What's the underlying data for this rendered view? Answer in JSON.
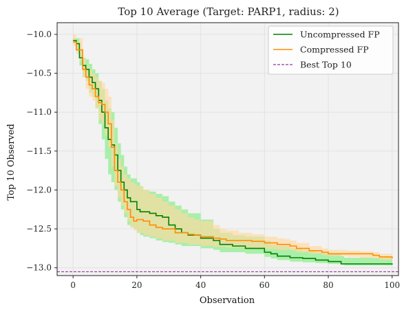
{
  "chart_data": {
    "type": "line",
    "title": "Top 10 Average (Target: PARP1, radius: 2)",
    "xlabel": "Observation",
    "ylabel": "Top 10 Observed",
    "xlim": [
      -5,
      102
    ],
    "ylim": [
      -13.1,
      -9.85
    ],
    "xticks": [
      0,
      20,
      40,
      60,
      80,
      100
    ],
    "yticks": [
      -13.0,
      -12.5,
      -12.0,
      -11.5,
      -11.0,
      -10.5,
      -10.0
    ],
    "xtick_labels": [
      "0",
      "20",
      "40",
      "60",
      "80",
      "100"
    ],
    "ytick_labels": [
      "−13.0",
      "−12.5",
      "−12.0",
      "−11.5",
      "−11.0",
      "−10.5",
      "−10.0"
    ],
    "grid": true,
    "background": "#f2f2f2",
    "legend_position": "top-right",
    "best_top10": {
      "name": "Best Top 10",
      "value": -13.05,
      "color": "#800080",
      "style": "dashed"
    },
    "series": [
      {
        "name": "Uncompressed FP",
        "color": "#008000",
        "band_color": "#90ee90",
        "step": true,
        "x": [
          0,
          1,
          2,
          3,
          4,
          5,
          6,
          7,
          8,
          9,
          10,
          11,
          12,
          13,
          14,
          15,
          16,
          17,
          18,
          19,
          20,
          21,
          22,
          24,
          26,
          28,
          30,
          32,
          34,
          36,
          40,
          44,
          46,
          50,
          54,
          60,
          62,
          64,
          68,
          72,
          76,
          80,
          84,
          85,
          100
        ],
        "mean": [
          -10.08,
          -10.12,
          -10.3,
          -10.4,
          -10.45,
          -10.55,
          -10.62,
          -10.7,
          -10.85,
          -11.0,
          -11.2,
          -11.35,
          -11.42,
          -11.55,
          -11.75,
          -11.9,
          -12.0,
          -12.1,
          -12.15,
          -12.15,
          -12.25,
          -12.28,
          -12.28,
          -12.3,
          -12.33,
          -12.35,
          -12.45,
          -12.5,
          -12.55,
          -12.58,
          -12.62,
          -12.65,
          -12.7,
          -12.72,
          -12.75,
          -12.8,
          -12.82,
          -12.85,
          -12.87,
          -12.88,
          -12.9,
          -12.92,
          -12.95,
          -12.95,
          -12.96
        ],
        "lower": [
          -10.1,
          -10.2,
          -10.4,
          -10.55,
          -10.6,
          -10.75,
          -10.8,
          -10.95,
          -11.15,
          -11.35,
          -11.6,
          -11.8,
          -11.9,
          -12.0,
          -12.15,
          -12.25,
          -12.35,
          -12.45,
          -12.48,
          -12.5,
          -12.55,
          -12.58,
          -12.6,
          -12.62,
          -12.65,
          -12.67,
          -12.68,
          -12.7,
          -12.72,
          -12.72,
          -12.75,
          -12.77,
          -12.8,
          -12.8,
          -12.82,
          -12.86,
          -12.88,
          -12.9,
          -12.92,
          -12.93,
          -12.94,
          -12.95,
          -12.96,
          -12.97,
          -12.98
        ],
        "upper": [
          -10.05,
          -10.05,
          -10.2,
          -10.3,
          -10.32,
          -10.38,
          -10.45,
          -10.5,
          -10.6,
          -10.7,
          -10.85,
          -10.95,
          -11.0,
          -11.2,
          -11.4,
          -11.55,
          -11.7,
          -11.8,
          -11.85,
          -11.85,
          -11.9,
          -11.95,
          -12.0,
          -12.02,
          -12.05,
          -12.08,
          -12.15,
          -12.2,
          -12.25,
          -12.3,
          -12.38,
          -12.5,
          -12.55,
          -12.58,
          -12.6,
          -12.65,
          -12.7,
          -12.72,
          -12.75,
          -12.78,
          -12.8,
          -12.82,
          -12.85,
          -12.87,
          -12.88
        ]
      },
      {
        "name": "Compressed FP",
        "color": "#ff8c00",
        "band_color": "#ffd9a0",
        "step": true,
        "x": [
          0,
          1,
          2,
          3,
          4,
          5,
          6,
          7,
          8,
          9,
          10,
          11,
          12,
          13,
          14,
          15,
          16,
          17,
          18,
          19,
          20,
          22,
          24,
          26,
          28,
          30,
          32,
          34,
          36,
          38,
          40,
          44,
          46,
          48,
          52,
          56,
          60,
          64,
          66,
          68,
          70,
          74,
          78,
          80,
          86,
          90,
          94,
          96,
          100
        ],
        "mean": [
          -10.1,
          -10.2,
          -10.2,
          -10.45,
          -10.55,
          -10.65,
          -10.7,
          -10.8,
          -10.88,
          -10.9,
          -11.0,
          -11.15,
          -11.45,
          -11.75,
          -11.9,
          -12.0,
          -12.15,
          -12.25,
          -12.35,
          -12.4,
          -12.38,
          -12.4,
          -12.45,
          -12.48,
          -12.5,
          -12.5,
          -12.55,
          -12.55,
          -12.57,
          -12.58,
          -12.6,
          -12.62,
          -12.63,
          -12.65,
          -12.65,
          -12.66,
          -12.68,
          -12.7,
          -12.7,
          -12.72,
          -12.75,
          -12.78,
          -12.8,
          -12.82,
          -12.82,
          -12.82,
          -12.84,
          -12.86,
          -12.88
        ],
        "lower": [
          -10.15,
          -10.25,
          -10.35,
          -10.55,
          -10.7,
          -10.8,
          -10.85,
          -10.95,
          -11.1,
          -11.15,
          -11.3,
          -11.45,
          -11.7,
          -11.95,
          -12.1,
          -12.2,
          -12.3,
          -12.4,
          -12.48,
          -12.52,
          -12.55,
          -12.58,
          -12.6,
          -12.62,
          -12.65,
          -12.65,
          -12.68,
          -12.68,
          -12.7,
          -12.7,
          -12.72,
          -12.73,
          -12.73,
          -12.74,
          -12.74,
          -12.75,
          -12.76,
          -12.77,
          -12.77,
          -12.78,
          -12.8,
          -12.82,
          -12.84,
          -12.85,
          -12.86,
          -12.87,
          -12.88,
          -12.9,
          -12.92
        ],
        "upper": [
          -10.0,
          -10.1,
          -10.05,
          -10.3,
          -10.4,
          -10.45,
          -10.5,
          -10.55,
          -10.6,
          -10.62,
          -10.7,
          -10.8,
          -11.1,
          -11.4,
          -11.6,
          -11.7,
          -11.8,
          -11.85,
          -11.9,
          -11.92,
          -11.95,
          -12.0,
          -12.05,
          -12.1,
          -12.15,
          -12.2,
          -12.25,
          -12.3,
          -12.35,
          -12.38,
          -12.4,
          -12.45,
          -12.5,
          -12.52,
          -12.55,
          -12.57,
          -12.6,
          -12.62,
          -12.63,
          -12.65,
          -12.68,
          -12.72,
          -12.75,
          -12.77,
          -12.78,
          -12.79,
          -12.8,
          -12.82,
          -12.84
        ]
      }
    ]
  }
}
